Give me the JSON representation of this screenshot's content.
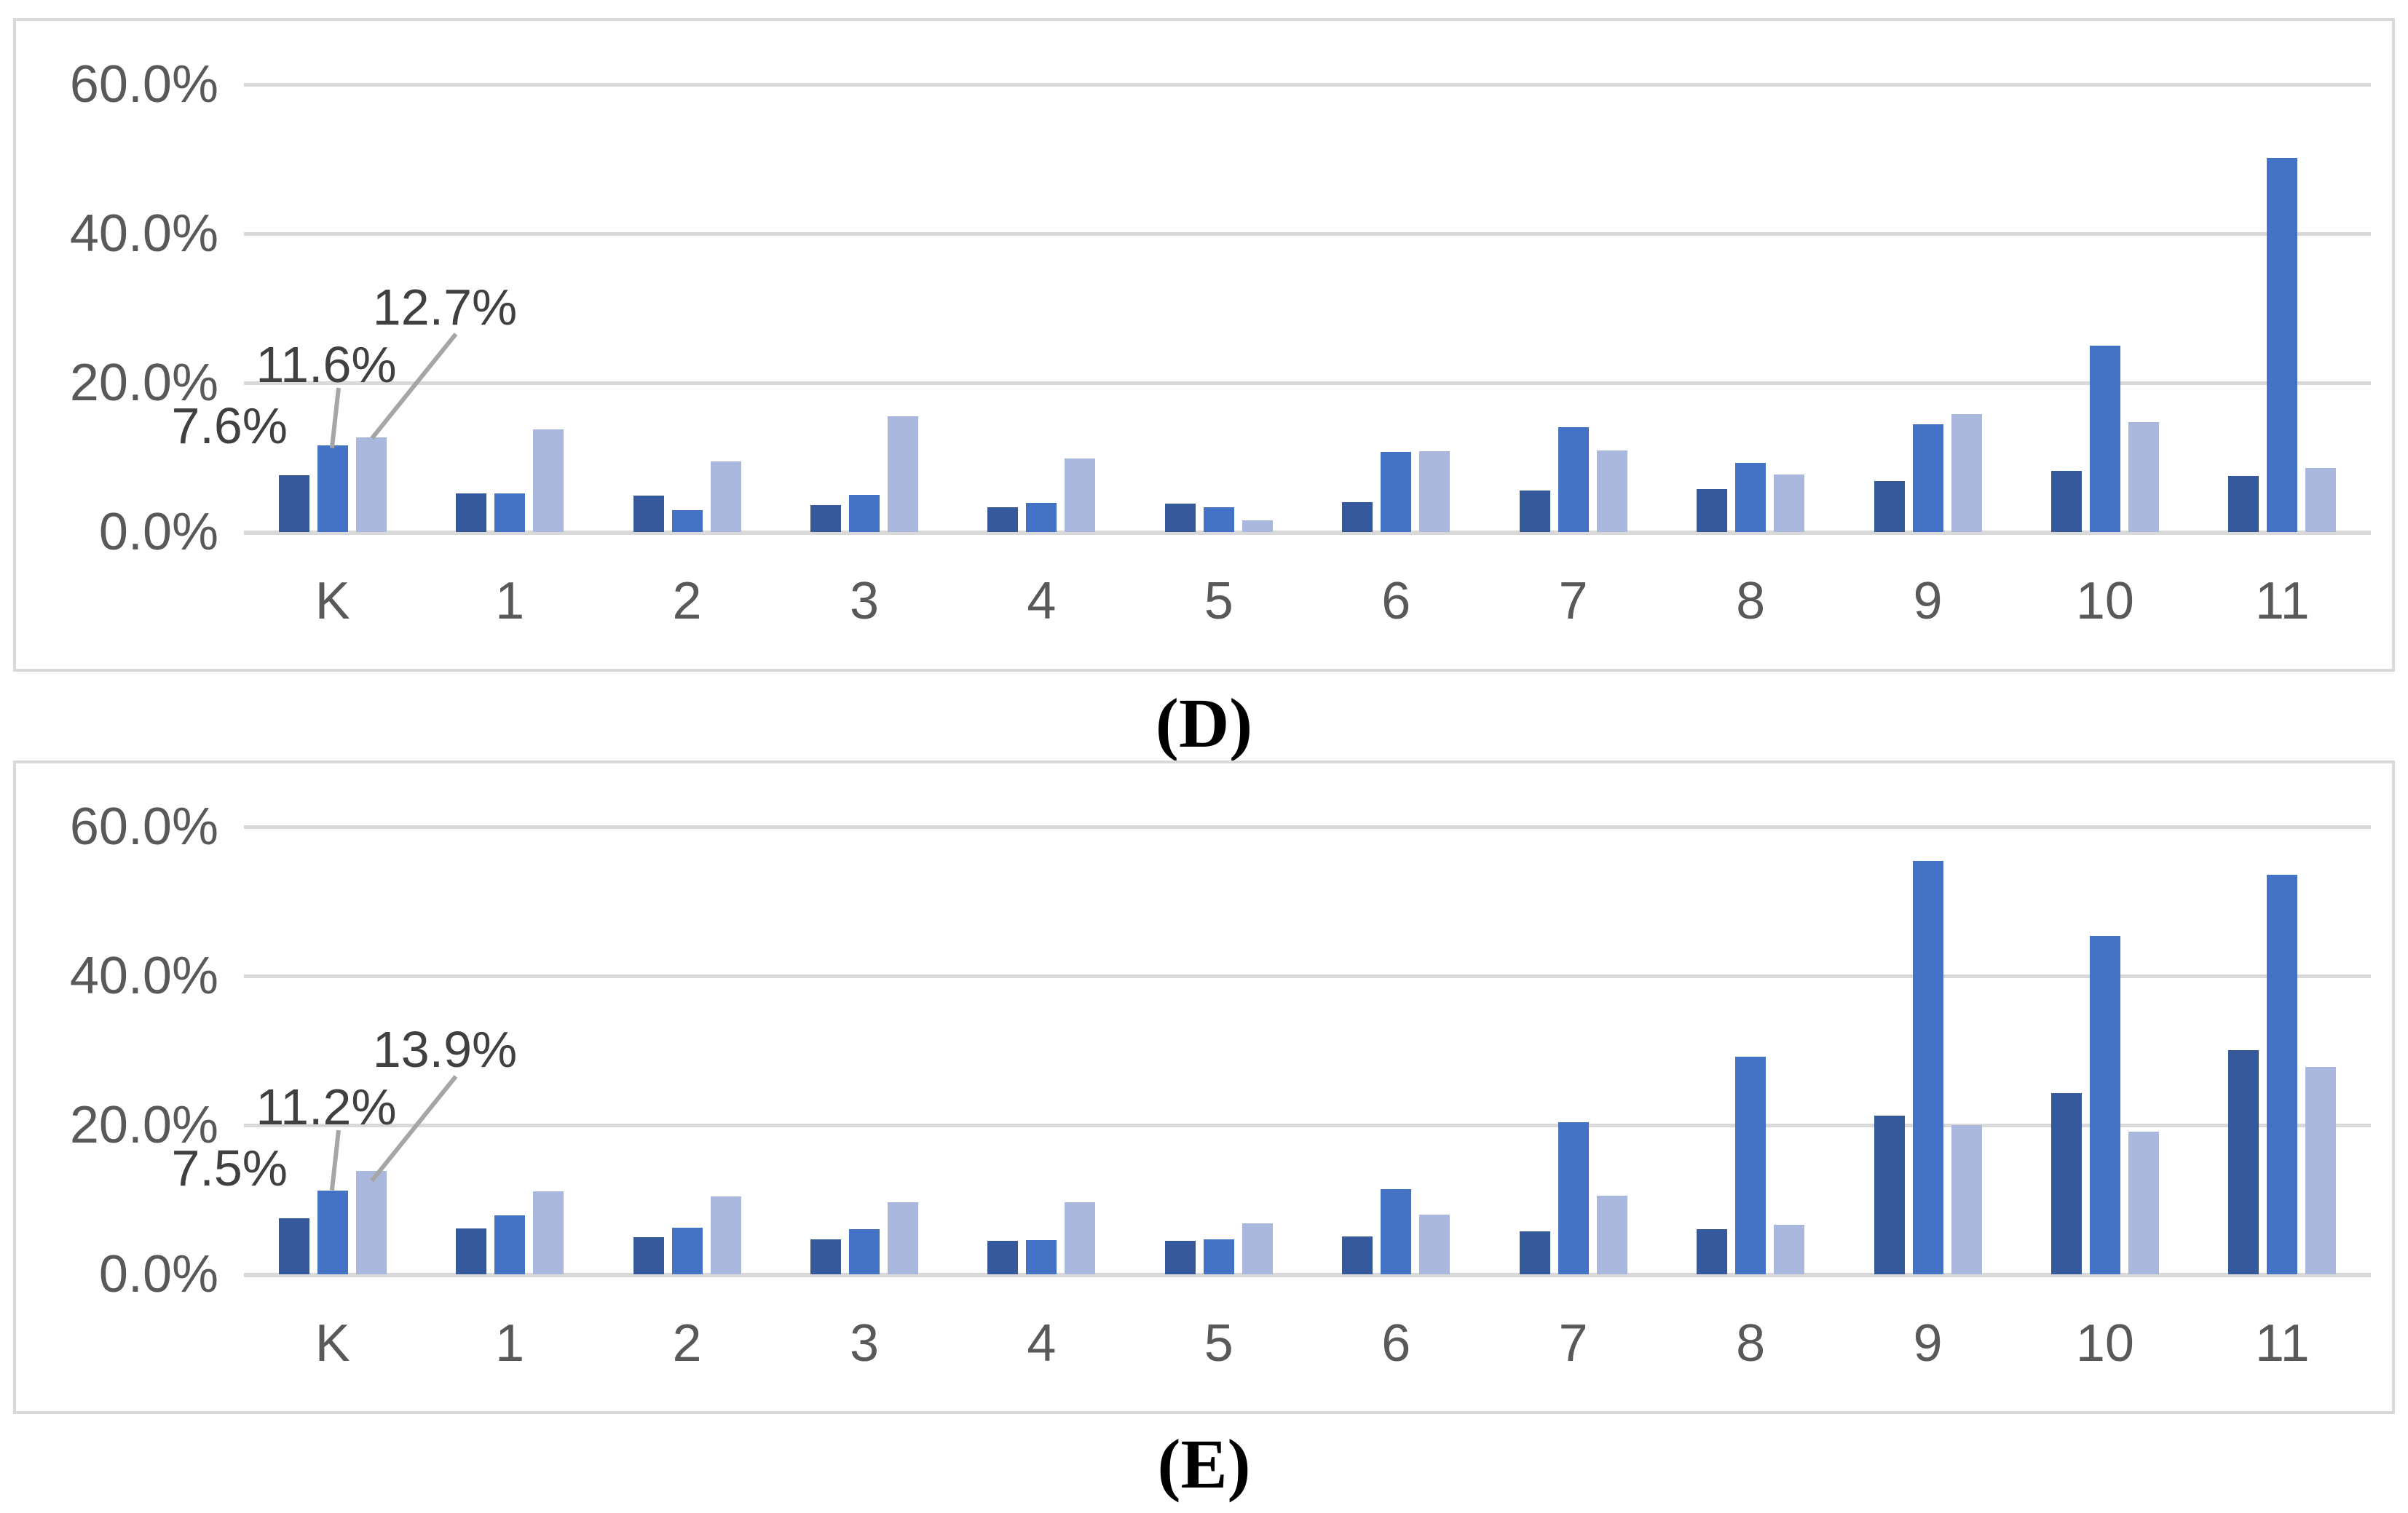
{
  "figure": {
    "background": "#ffffff",
    "border_color": "#d9d9d9",
    "axis_text_color": "#595959",
    "annotation_text_color": "#404040",
    "leader_line_color": "#a6a6a6"
  },
  "chart_data": [
    {
      "id": "D",
      "panel_label": "(D)",
      "type": "bar",
      "title": "",
      "xlabel": "",
      "ylabel": "",
      "ylim": [
        0,
        60
      ],
      "grid": true,
      "legend_position": "none",
      "y_ticks": [
        "60.0%",
        "40.0%",
        "20.0%",
        "0.0%"
      ],
      "categories": [
        "K",
        "1",
        "2",
        "3",
        "4",
        "5",
        "6",
        "7",
        "8",
        "9",
        "10",
        "11"
      ],
      "series": [
        {
          "name": "dark-blue",
          "color": "#36599b",
          "values": [
            7.6,
            5.2,
            4.9,
            3.6,
            3.3,
            3.8,
            4.0,
            5.6,
            5.8,
            6.8,
            8.2,
            7.5
          ]
        },
        {
          "name": "medium-blue",
          "color": "#4472c4",
          "values": [
            11.6,
            5.2,
            2.9,
            5.0,
            3.9,
            3.3,
            10.7,
            14.0,
            9.3,
            14.4,
            25.0,
            50.1
          ]
        },
        {
          "name": "light-blue",
          "color": "#a9b8dc",
          "values": [
            12.7,
            13.8,
            9.5,
            15.5,
            9.9,
            1.6,
            10.8,
            10.9,
            7.7,
            15.8,
            14.7,
            8.6
          ]
        }
      ],
      "annotations": [
        {
          "text": "7.6%",
          "value": 7.6,
          "series": "dark-blue",
          "category": "K"
        },
        {
          "text": "11.6%",
          "value": 11.6,
          "series": "medium-blue",
          "category": "K"
        },
        {
          "text": "12.7%",
          "value": 12.7,
          "series": "light-blue",
          "category": "K"
        }
      ]
    },
    {
      "id": "E",
      "panel_label": "(E)",
      "type": "bar",
      "title": "",
      "xlabel": "",
      "ylabel": "",
      "ylim": [
        0,
        60
      ],
      "grid": true,
      "legend_position": "none",
      "y_ticks": [
        "60.0%",
        "40.0%",
        "20.0%",
        "0.0%"
      ],
      "categories": [
        "K",
        "1",
        "2",
        "3",
        "4",
        "5",
        "6",
        "7",
        "8",
        "9",
        "10",
        "11"
      ],
      "series": [
        {
          "name": "dark-blue",
          "color": "#36599b",
          "values": [
            7.5,
            6.1,
            5.0,
            4.7,
            4.5,
            4.5,
            5.1,
            5.8,
            6.0,
            21.3,
            24.3,
            30.0
          ]
        },
        {
          "name": "medium-blue",
          "color": "#4472c4",
          "values": [
            11.2,
            7.9,
            6.2,
            6.0,
            4.6,
            4.7,
            11.4,
            20.4,
            29.2,
            55.4,
            45.4,
            53.6
          ]
        },
        {
          "name": "light-blue",
          "color": "#a9b8dc",
          "values": [
            13.9,
            11.1,
            10.4,
            9.7,
            9.7,
            6.8,
            8.0,
            10.5,
            6.6,
            20.0,
            19.1,
            27.8
          ]
        }
      ],
      "annotations": [
        {
          "text": "7.5%",
          "value": 7.5,
          "series": "dark-blue",
          "category": "K"
        },
        {
          "text": "11.2%",
          "value": 11.2,
          "series": "medium-blue",
          "category": "K"
        },
        {
          "text": "13.9%",
          "value": 13.9,
          "series": "light-blue",
          "category": "K"
        }
      ]
    }
  ]
}
